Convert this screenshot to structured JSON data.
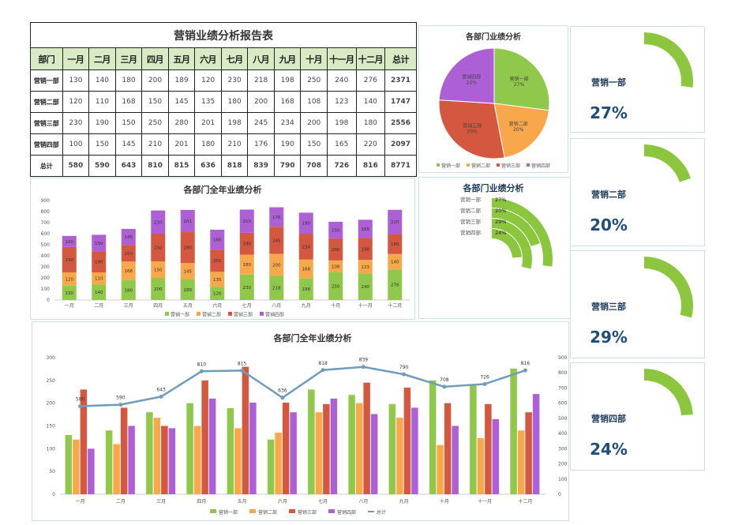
{
  "table": {
    "title": "营销业绩分析报告表",
    "headers": [
      "部门",
      "一月",
      "二月",
      "三月",
      "四月",
      "五月",
      "六月",
      "七月",
      "八月",
      "九月",
      "十月",
      "十一月",
      "十二月",
      "总计"
    ],
    "rows": [
      {
        "dept": "营销一部",
        "values": [
          130,
          140,
          180,
          200,
          189,
          120,
          230,
          218,
          198,
          250,
          240,
          276
        ],
        "total": 2371
      },
      {
        "dept": "营销二部",
        "values": [
          120,
          110,
          168,
          150,
          145,
          135,
          180,
          200,
          168,
          108,
          123,
          140
        ],
        "total": 1747
      },
      {
        "dept": "营销三部",
        "values": [
          230,
          190,
          150,
          250,
          280,
          201,
          198,
          245,
          234,
          200,
          198,
          180
        ],
        "total": 2556
      },
      {
        "dept": "营销四部",
        "values": [
          100,
          150,
          145,
          210,
          201,
          180,
          210,
          176,
          190,
          150,
          165,
          220
        ],
        "total": 2097
      }
    ],
    "sum_row": {
      "label": "总计",
      "values": [
        580,
        590,
        643,
        810,
        815,
        636,
        818,
        839,
        790,
        708,
        726,
        816
      ],
      "total": 8771
    }
  },
  "colors": {
    "dept1": "#8fc84a",
    "dept2": "#f8a84a",
    "dept3": "#d4573f",
    "dept4": "#ad5fd6",
    "line": "#6f9bbd",
    "gauge": "#8cc63e",
    "pct_text": "#1f4e79"
  },
  "chart_data": [
    {
      "id": "stacked",
      "type": "bar",
      "stacked": true,
      "title": "各部门全年业绩分析",
      "categories": [
        "一月",
        "二月",
        "三月",
        "四月",
        "五月",
        "六月",
        "七月",
        "八月",
        "九月",
        "十月",
        "十一月",
        "十二月"
      ],
      "series": [
        {
          "name": "营销一部",
          "values": [
            130,
            140,
            180,
            200,
            189,
            120,
            230,
            218,
            198,
            250,
            240,
            276
          ]
        },
        {
          "name": "营销二部",
          "values": [
            120,
            110,
            168,
            150,
            145,
            135,
            180,
            200,
            168,
            108,
            123,
            140
          ]
        },
        {
          "name": "营销三部",
          "values": [
            230,
            190,
            150,
            250,
            280,
            201,
            198,
            245,
            234,
            200,
            198,
            180
          ]
        },
        {
          "name": "营销四部",
          "values": [
            100,
            150,
            145,
            210,
            201,
            180,
            210,
            176,
            190,
            150,
            165,
            220
          ]
        }
      ],
      "ylim": [
        0,
        900
      ],
      "yticks": [
        0,
        100,
        200,
        300,
        400,
        500,
        600,
        700,
        800,
        900
      ],
      "legend": "bottom"
    },
    {
      "id": "pie",
      "type": "pie",
      "title": "各部门业绩分析",
      "labels": [
        "营销一部",
        "营销二部",
        "营销三部",
        "营销四部"
      ],
      "values": [
        27,
        20,
        29,
        24
      ],
      "legend": "bottom"
    },
    {
      "id": "radial",
      "type": "radial-bar",
      "title": "各部门业绩分析",
      "labels": [
        "营销一部",
        "营销二部",
        "营销三部",
        "营销四部"
      ],
      "values": [
        27,
        20,
        29,
        24
      ]
    },
    {
      "id": "combo",
      "type": "bar",
      "title": "各部门全年业绩分析",
      "categories": [
        "一月",
        "二月",
        "三月",
        "四月",
        "五月",
        "六月",
        "七月",
        "八月",
        "九月",
        "十月",
        "十一月",
        "十二月"
      ],
      "series": [
        {
          "name": "营销一部",
          "values": [
            130,
            140,
            180,
            200,
            189,
            120,
            230,
            218,
            198,
            250,
            240,
            276
          ]
        },
        {
          "name": "营销二部",
          "values": [
            120,
            110,
            168,
            150,
            145,
            135,
            180,
            200,
            168,
            108,
            123,
            140
          ]
        },
        {
          "name": "营销三部",
          "values": [
            230,
            190,
            150,
            250,
            280,
            201,
            198,
            245,
            234,
            200,
            198,
            180
          ]
        },
        {
          "name": "营销四部",
          "values": [
            100,
            150,
            145,
            210,
            201,
            180,
            210,
            176,
            190,
            150,
            165,
            220
          ]
        },
        {
          "name": "总计",
          "type": "line",
          "axis": "right",
          "values": [
            580,
            590,
            643,
            810,
            815,
            636,
            818,
            839,
            790,
            708,
            726,
            816
          ]
        }
      ],
      "ylim": [
        0,
        300
      ],
      "yticks": [
        0,
        50,
        100,
        150,
        200,
        250,
        300
      ],
      "y2lim": [
        0,
        900
      ],
      "y2ticks": [
        0,
        100,
        200,
        300,
        400,
        500,
        600,
        700,
        800,
        900
      ],
      "legend": "bottom"
    }
  ],
  "gauges": [
    {
      "label": "营销一部",
      "pct": "27%",
      "value": 27
    },
    {
      "label": "营销二部",
      "pct": "20%",
      "value": 20
    },
    {
      "label": "营销三部",
      "pct": "29%",
      "value": 29
    },
    {
      "label": "营销四部",
      "pct": "24%",
      "value": 24
    }
  ]
}
